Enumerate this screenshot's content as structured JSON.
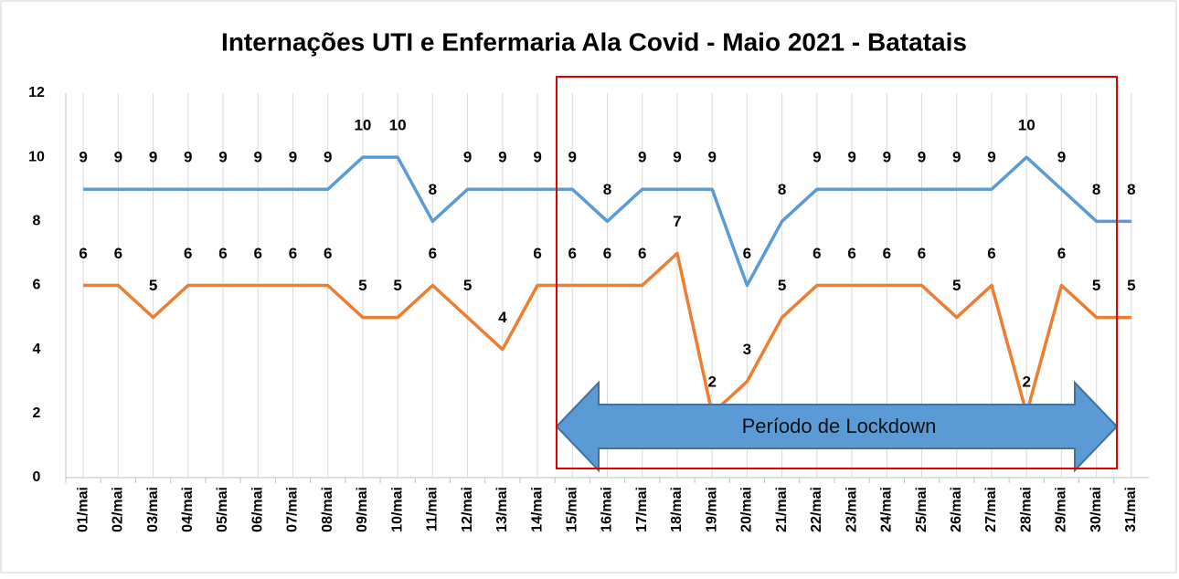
{
  "chart_data": {
    "type": "line",
    "title": "Internações UTI e Enfermaria Ala Covid - Maio 2021 - Batatais",
    "annotation": "Período de Lockdown",
    "categories": [
      "01/mai",
      "02/mai",
      "03/mai",
      "04/mai",
      "05/mai",
      "06/mai",
      "07/mai",
      "08/mai",
      "09/mai",
      "10/mai",
      "11/mai",
      "12/mai",
      "13/mai",
      "14/mai",
      "15/mai",
      "16/mai",
      "17/mai",
      "18/mai",
      "19/mai",
      "20/mai",
      "21/mai",
      "22/mai",
      "23/mai",
      "24/mai",
      "25/mai",
      "26/mai",
      "27/mai",
      "28/mai",
      "29/mai",
      "30/mai",
      "31/mai"
    ],
    "series": [
      {
        "color": "#5b9bd5",
        "values": [
          9,
          9,
          9,
          9,
          9,
          9,
          9,
          9,
          10,
          10,
          8,
          9,
          9,
          9,
          9,
          8,
          9,
          9,
          9,
          6,
          8,
          9,
          9,
          9,
          9,
          9,
          9,
          10,
          9,
          8,
          8
        ]
      },
      {
        "color": "#ed7d31",
        "values": [
          6,
          6,
          5,
          6,
          6,
          6,
          6,
          6,
          5,
          5,
          6,
          5,
          4,
          6,
          6,
          6,
          6,
          7,
          2,
          3,
          5,
          6,
          6,
          6,
          6,
          5,
          6,
          2,
          6,
          5,
          5
        ]
      }
    ],
    "ylim": [
      0,
      12
    ],
    "yticks": [
      0,
      2,
      4,
      6,
      8,
      10,
      12
    ],
    "grid": "x"
  }
}
